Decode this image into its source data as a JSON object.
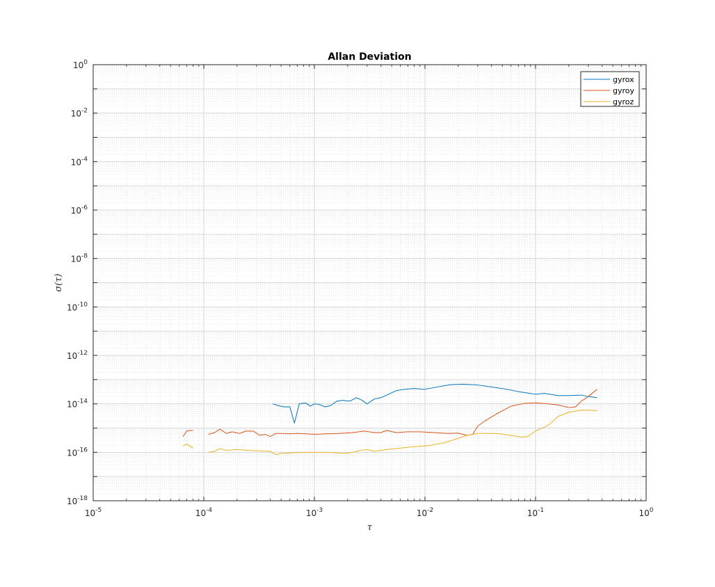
{
  "chart_data": {
    "type": "line",
    "title": "Allan Deviation",
    "xlabel": "τ",
    "ylabel": "σ(τ)",
    "xscale": "log",
    "yscale": "log",
    "xlim": [
      1e-05,
      1
    ],
    "ylim": [
      1e-18,
      1
    ],
    "grid": true,
    "minor_grid": true,
    "legend_position": "top-right",
    "x_ticks": [
      {
        "base": "10",
        "exp": "-5"
      },
      {
        "base": "10",
        "exp": "-4"
      },
      {
        "base": "10",
        "exp": "-3"
      },
      {
        "base": "10",
        "exp": "-2"
      },
      {
        "base": "10",
        "exp": "-1"
      },
      {
        "base": "10",
        "exp": "0"
      }
    ],
    "y_ticks": [
      {
        "base": "10",
        "exp": "0"
      },
      {
        "base": "10",
        "exp": "-2"
      },
      {
        "base": "10",
        "exp": "-4"
      },
      {
        "base": "10",
        "exp": "-6"
      },
      {
        "base": "10",
        "exp": "-8"
      },
      {
        "base": "10",
        "exp": "-10"
      },
      {
        "base": "10",
        "exp": "-12"
      },
      {
        "base": "10",
        "exp": "-14"
      },
      {
        "base": "10",
        "exp": "-16"
      },
      {
        "base": "10",
        "exp": "-18"
      }
    ],
    "series": [
      {
        "name": "gyrox",
        "color": "#0072bd",
        "x": [
          0.00042,
          0.00047,
          0.00053,
          0.0006,
          0.00066,
          0.00073,
          0.00083,
          0.00092,
          0.001,
          0.0011,
          0.00125,
          0.0014,
          0.0016,
          0.0018,
          0.0021,
          0.0024,
          0.0027,
          0.003,
          0.0035,
          0.004,
          0.0047,
          0.0055,
          0.0065,
          0.008,
          0.01,
          0.013,
          0.017,
          0.022,
          0.03,
          0.04,
          0.055,
          0.07,
          0.085,
          0.1,
          0.12,
          0.16,
          0.2,
          0.26,
          0.3,
          0.36
        ],
        "y": [
          1e-14,
          8.5e-15,
          7.5e-15,
          7.5e-15,
          1.6e-15,
          1e-14,
          1.1e-14,
          8e-15,
          1e-14,
          9.5e-15,
          7.5e-15,
          8.5e-15,
          1.3e-14,
          1.4e-14,
          1.3e-14,
          1.8e-14,
          1.4e-14,
          1e-14,
          1.6e-14,
          1.8e-14,
          2.5e-14,
          3.5e-14,
          4e-14,
          4.3e-14,
          4e-14,
          5e-14,
          6.2e-14,
          6.5e-14,
          6e-14,
          5e-14,
          4e-14,
          3.2e-14,
          2.8e-14,
          2.5e-14,
          2.7e-14,
          2.2e-14,
          2.2e-14,
          2.3e-14,
          2e-14,
          1.8e-14
        ]
      },
      {
        "name": "gyroy",
        "color": "#d95319",
        "x": [
          6.5e-05,
          7e-05,
          7.5e-05,
          8e-05,
          null,
          0.00011,
          0.000125,
          0.00014,
          0.00016,
          0.00018,
          0.00021,
          0.00024,
          0.00028,
          0.00032,
          0.00036,
          0.0004,
          0.00045,
          0.0005,
          0.0006,
          0.0007,
          0.00085,
          0.001,
          0.0013,
          0.0017,
          0.0022,
          0.0028,
          0.0035,
          0.004,
          0.0045,
          0.0055,
          0.007,
          0.009,
          0.012,
          0.016,
          0.02,
          0.024,
          0.027,
          0.03,
          0.035,
          0.045,
          0.06,
          0.08,
          0.1,
          0.13,
          0.16,
          0.2,
          0.23,
          0.26,
          0.3,
          0.36
        ],
        "y": [
          4.5e-16,
          7.5e-16,
          8e-16,
          8e-16,
          null,
          5.5e-16,
          6.5e-16,
          9e-16,
          6e-16,
          7e-16,
          6e-16,
          7.5e-16,
          7.5e-16,
          5e-16,
          5.5e-16,
          4.5e-16,
          6e-16,
          6e-16,
          5.8e-16,
          6e-16,
          5.8e-16,
          5.5e-16,
          5.8e-16,
          6e-16,
          6.5e-16,
          7.5e-16,
          6.5e-16,
          6.5e-16,
          8e-16,
          6.5e-16,
          7e-16,
          7e-16,
          6.5e-16,
          6e-16,
          6.2e-16,
          5e-16,
          5.5e-16,
          1.2e-15,
          2e-15,
          4e-15,
          8e-15,
          1.05e-14,
          1.1e-14,
          1e-14,
          9e-15,
          7e-15,
          7.5e-15,
          1.3e-14,
          2e-14,
          4e-14
        ]
      },
      {
        "name": "gyroz",
        "color": "#edb120",
        "x": [
          6.5e-05,
          7e-05,
          7.5e-05,
          8e-05,
          null,
          0.00011,
          0.000125,
          0.00014,
          0.00016,
          0.0002,
          0.00026,
          0.00033,
          0.0004,
          0.00045,
          0.0005,
          0.0006,
          0.0008,
          0.001,
          0.0013,
          0.0016,
          0.0019,
          0.0022,
          0.0026,
          0.003,
          0.0035,
          0.0045,
          0.006,
          0.008,
          0.011,
          0.015,
          0.019,
          0.024,
          0.03,
          0.038,
          0.048,
          0.06,
          0.075,
          0.085,
          0.1,
          0.13,
          0.16,
          0.2,
          0.26,
          0.3,
          0.36
        ],
        "y": [
          1.8e-16,
          2.2e-16,
          1.8e-16,
          1.5e-16,
          null,
          1e-16,
          1.1e-16,
          1.4e-16,
          1.2e-16,
          1.3e-16,
          1.2e-16,
          1.15e-16,
          1.1e-16,
          8e-17,
          9e-17,
          9.5e-17,
          1e-16,
          1e-16,
          1e-16,
          9.5e-17,
          9e-17,
          1e-16,
          1.2e-16,
          1.3e-16,
          1.1e-16,
          1.3e-16,
          1.5e-16,
          1.7e-16,
          1.9e-16,
          2.5e-16,
          3.5e-16,
          5e-16,
          6e-16,
          6e-16,
          5.8e-16,
          5e-16,
          4.2e-16,
          4.5e-16,
          7.5e-16,
          1.3e-15,
          3e-15,
          4.5e-15,
          5.5e-15,
          5.5e-15,
          5.2e-15
        ]
      }
    ]
  }
}
